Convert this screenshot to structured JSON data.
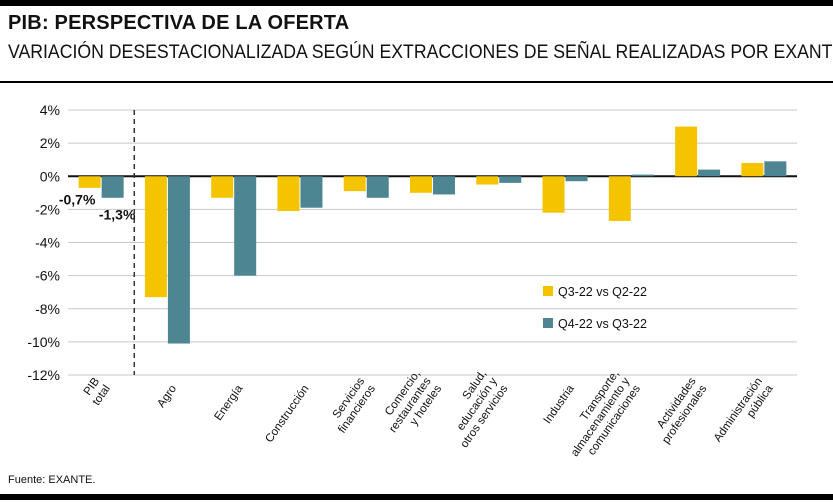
{
  "header": {
    "title": "PIB: PERSPECTIVA DE LA OFERTA",
    "subtitle": "VARIACIÓN DESESTACIONALIZADA SEGÚN EXTRACCIONES DE SEÑAL REALIZADAS POR EXANTE"
  },
  "footer": {
    "source": "Fuente: EXANTE."
  },
  "colors": {
    "series1": "#f5c400",
    "series2": "#4e8592",
    "grid": "#c8c8c8"
  },
  "chart_data": {
    "type": "bar",
    "title": "PIB: PERSPECTIVA DE LA OFERTA",
    "subtitle": "VARIACIÓN DESESTACIONALIZADA SEGÚN EXTRACCIONES DE SEÑAL REALIZADAS POR EXANTE",
    "categories": [
      [
        "PIB",
        "total"
      ],
      [
        "Agro"
      ],
      [
        "Energía"
      ],
      [
        "Construcción"
      ],
      [
        "Servicios",
        "financieros"
      ],
      [
        "Comercio,",
        "restaurantes",
        "y hoteles"
      ],
      [
        "Salud,",
        "educación y",
        "otros servicios"
      ],
      [
        "Industria"
      ],
      [
        "Transporte,",
        "almacenamiento y",
        "comunicaciones"
      ],
      [
        "Actividades",
        "profesionales"
      ],
      [
        "Administración",
        "pública"
      ]
    ],
    "series": [
      {
        "name": "Q3-22 vs Q2-22",
        "values": [
          -0.7,
          -7.3,
          -1.3,
          -2.1,
          -0.9,
          -1.0,
          -0.5,
          -2.2,
          -2.7,
          3.0,
          0.8
        ]
      },
      {
        "name": "Q4-22 vs Q3-22",
        "values": [
          -1.3,
          -10.1,
          -6.0,
          -1.9,
          -1.3,
          -1.1,
          -0.4,
          -0.3,
          0.1,
          0.4,
          0.9
        ]
      }
    ],
    "data_labels": [
      "-0,7%",
      "-1,3%"
    ],
    "yticks": [
      "4%",
      "2%",
      "0%",
      "-2%",
      "-4%",
      "-6%",
      "-8%",
      "-10%",
      "-12%"
    ],
    "ylim": [
      -12,
      4
    ],
    "xlabel": "",
    "ylabel": "",
    "legend_position": "right"
  }
}
